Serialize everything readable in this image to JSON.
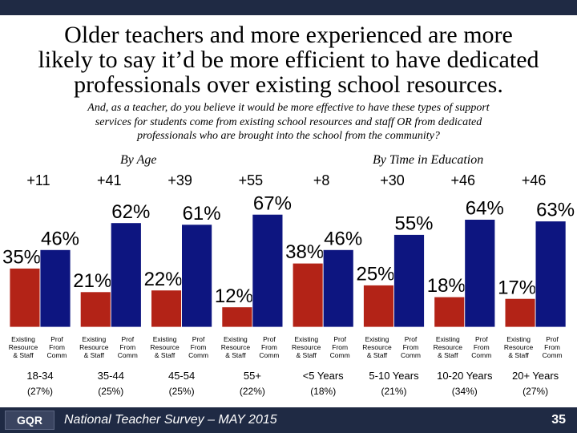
{
  "header": {
    "title_lines": [
      "Older teachers and more experienced are more",
      "likely to say it’d be more efficient to have dedicated",
      "professionals over existing school resources."
    ],
    "subtitle_lines": [
      "And, as a teacher, do you believe it would be more effective to have these types of support",
      "services for students come from existing school resources and staff OR from dedicated",
      "professionals who are brought into the school from the community?"
    ]
  },
  "group_labels": {
    "age": "By Age",
    "education": "By Time in Education"
  },
  "chart_data": {
    "type": "bar",
    "categories": [
      "18-34",
      "35-44",
      "45-54",
      "55+",
      "<5 Years",
      "5-10 Years",
      "10-20 Years",
      "20+ Years"
    ],
    "category_bases": [
      "(27%)",
      "(25%)",
      "(25%)",
      "(22%)",
      "(18%)",
      "(21%)",
      "(34%)",
      "(27%)"
    ],
    "net_labels": [
      "+11",
      "+41",
      "+39",
      "+55",
      "+8",
      "+30",
      "+46",
      "+46"
    ],
    "series": [
      {
        "name": "Existing Resource & Staff",
        "values": [
          35,
          21,
          22,
          12,
          38,
          25,
          18,
          17
        ],
        "color": "#b32317"
      },
      {
        "name": "Prof From Comm",
        "values": [
          46,
          62,
          61,
          67,
          46,
          55,
          64,
          63
        ],
        "color": "#0d1580"
      }
    ],
    "value_suffix": "%",
    "series_labels": [
      [
        "Existing",
        "Resource",
        "& Staff"
      ],
      [
        "Prof",
        "From",
        "Comm"
      ]
    ],
    "ylim": [
      0,
      70
    ]
  },
  "footer": {
    "logo": "GQR",
    "text": "National Teacher Survey – MAY 2015",
    "page": "35"
  }
}
